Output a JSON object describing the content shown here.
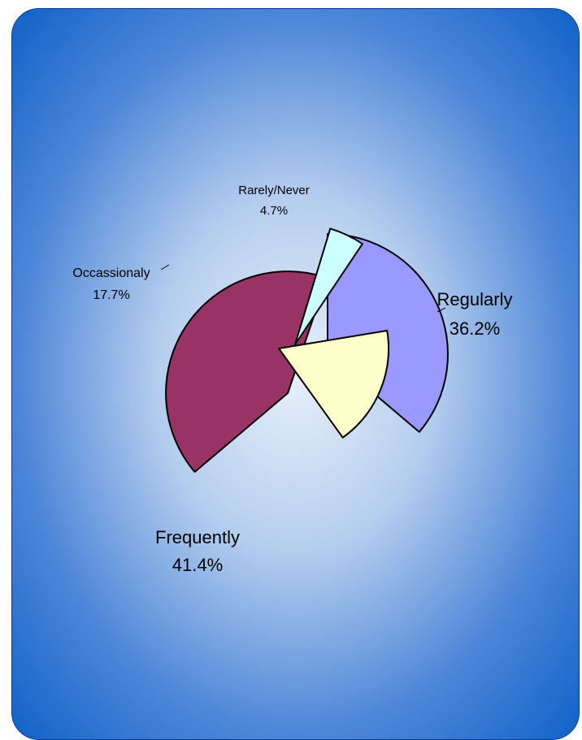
{
  "chart_data": {
    "type": "pie",
    "exploded": true,
    "slices": [
      {
        "label": "Regularly",
        "percent_label": "36.2%",
        "value": 36.2,
        "color": "#9999ff",
        "start_deg": 90.0
      },
      {
        "label": "Frequently",
        "percent_label": "41.4%",
        "value": 41.4,
        "color": "#993366",
        "start_deg": 220.3
      },
      {
        "label": "Occassionaly",
        "percent_label": "17.7%",
        "value": 17.7,
        "color": "#ffffcc",
        "start_deg": 9.4
      },
      {
        "label": "Rarely/Never",
        "percent_label": "4.7%",
        "value": 4.7,
        "color": "#ccffff",
        "start_deg": 73.1
      }
    ]
  },
  "colors": {
    "frame_outer": "#1466cc",
    "frame_inner": "#e4eefa",
    "slice_border": "#000000"
  }
}
